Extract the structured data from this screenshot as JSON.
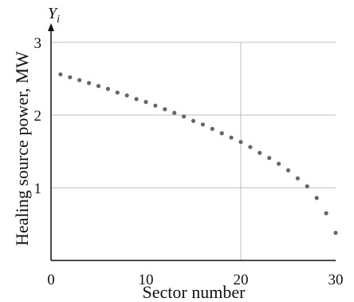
{
  "chart_data": {
    "type": "scatter",
    "xlabel": "Sector number",
    "ylabel": "Healing source power, MW",
    "y_symbol_main": "Y",
    "y_symbol_sub": "i",
    "xlim": [
      0,
      30
    ],
    "ylim": [
      0,
      3
    ],
    "x_ticks": [
      0,
      10,
      20,
      30
    ],
    "y_ticks": [
      1,
      2,
      3
    ],
    "x_tick_labels": [
      "0",
      "10",
      "20",
      "30"
    ],
    "y_tick_labels": [
      "1",
      "2",
      "3"
    ],
    "grid": true,
    "x": [
      1,
      2,
      3,
      4,
      5,
      6,
      7,
      8,
      9,
      10,
      11,
      12,
      13,
      14,
      15,
      16,
      17,
      18,
      19,
      20,
      21,
      22,
      23,
      24,
      25,
      26,
      27,
      28,
      29,
      30
    ],
    "y": [
      2.56,
      2.52,
      2.48,
      2.44,
      2.4,
      2.36,
      2.31,
      2.27,
      2.22,
      2.18,
      2.13,
      2.08,
      2.03,
      1.98,
      1.92,
      1.87,
      1.81,
      1.75,
      1.69,
      1.63,
      1.56,
      1.48,
      1.41,
      1.33,
      1.24,
      1.13,
      1.02,
      0.86,
      0.65,
      0.38
    ],
    "colors": {
      "points": "#666666",
      "grid": "#bdbdbd",
      "axes": "#111111"
    }
  }
}
